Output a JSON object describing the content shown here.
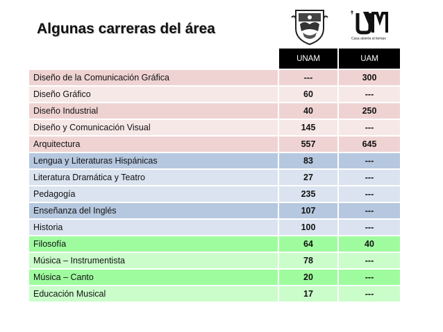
{
  "slide": {
    "title": "Algunas carreras del área",
    "logos": {
      "unam_icon": "unam-crest",
      "uam_icon": "uam-logo",
      "uam_tagline": "Casa abierta al tiempo"
    }
  },
  "table": {
    "header": {
      "name": "",
      "unam": "UNAM",
      "uam": "UAM"
    },
    "rows": [
      {
        "name": "Diseño de la Comunicación Gráfica",
        "unam": "---",
        "uam": "300"
      },
      {
        "name": "Diseño Gráfico",
        "unam": "60",
        "uam": "---"
      },
      {
        "name": "Diseño Industrial",
        "unam": "40",
        "uam": "250"
      },
      {
        "name": "Diseño y Comunicación Visual",
        "unam": "145",
        "uam": "---"
      },
      {
        "name": "Arquitectura",
        "unam": "557",
        "uam": "645"
      },
      {
        "name": "Lengua y Literaturas Hispánicas",
        "unam": "83",
        "uam": "---"
      },
      {
        "name": "Literatura Dramática y Teatro",
        "unam": "27",
        "uam": "---"
      },
      {
        "name": "Pedagogía",
        "unam": "235",
        "uam": "---"
      },
      {
        "name": "Enseñanza del Inglés",
        "unam": "107",
        "uam": "---"
      },
      {
        "name": "Historia",
        "unam": "100",
        "uam": "---"
      },
      {
        "name": "Filosofía",
        "unam": "64",
        "uam": "40"
      },
      {
        "name": "Música – Instrumentista",
        "unam": "78",
        "uam": "---"
      },
      {
        "name": "Música – Canto",
        "unam": "20",
        "uam": "---"
      },
      {
        "name": "Educación Musical",
        "unam": "17",
        "uam": "---"
      }
    ]
  },
  "colors": {
    "header_bg": "#000000",
    "design_group": "#efd3d3",
    "humanities_group": "#b6c8df",
    "arts_group": "#9efc9e"
  }
}
